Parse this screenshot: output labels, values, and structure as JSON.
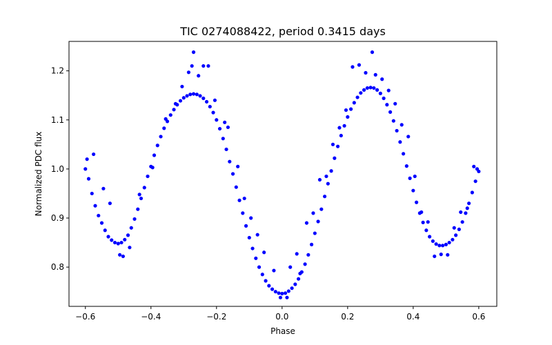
{
  "chart_data": {
    "type": "scatter",
    "title": "TIC 0274088422, period 0.3415 days",
    "xlabel": "Phase",
    "ylabel": "Normalized PDC flux",
    "xlim": [
      -0.65,
      0.655
    ],
    "ylim": [
      0.72,
      1.26
    ],
    "xticks": [
      -0.6,
      -0.4,
      -0.2,
      0.0,
      0.2,
      0.4,
      0.6
    ],
    "xtick_labels": [
      "−0.6",
      "−0.4",
      "−0.2",
      "0.0",
      "0.2",
      "0.4",
      "0.6"
    ],
    "yticks": [
      0.8,
      0.9,
      1.0,
      1.1,
      1.2
    ],
    "ytick_labels": [
      "0.8",
      "0.9",
      "1.0",
      "1.1",
      "1.2"
    ],
    "grid": false,
    "series": [
      {
        "color": "#0000ff",
        "marker": "circle",
        "points": [
          [
            -0.6,
            1.0
          ],
          [
            -0.59,
            0.98
          ],
          [
            -0.58,
            0.95
          ],
          [
            -0.57,
            0.925
          ],
          [
            -0.56,
            0.905
          ],
          [
            -0.55,
            0.89
          ],
          [
            -0.54,
            0.875
          ],
          [
            -0.53,
            0.862
          ],
          [
            -0.52,
            0.855
          ],
          [
            -0.51,
            0.85
          ],
          [
            -0.5,
            0.848
          ],
          [
            -0.49,
            0.85
          ],
          [
            -0.48,
            0.856
          ],
          [
            -0.47,
            0.865
          ],
          [
            -0.46,
            0.88
          ],
          [
            -0.45,
            0.898
          ],
          [
            -0.44,
            0.918
          ],
          [
            -0.43,
            0.94
          ],
          [
            -0.42,
            0.962
          ],
          [
            -0.41,
            0.985
          ],
          [
            -0.4,
            1.005
          ],
          [
            -0.39,
            1.028
          ],
          [
            -0.38,
            1.048
          ],
          [
            -0.37,
            1.066
          ],
          [
            -0.36,
            1.083
          ],
          [
            -0.35,
            1.097
          ],
          [
            -0.34,
            1.11
          ],
          [
            -0.33,
            1.121
          ],
          [
            -0.32,
            1.131
          ],
          [
            -0.31,
            1.139
          ],
          [
            -0.3,
            1.145
          ],
          [
            -0.29,
            1.149
          ],
          [
            -0.28,
            1.152
          ],
          [
            -0.27,
            1.153
          ],
          [
            -0.26,
            1.152
          ],
          [
            -0.25,
            1.149
          ],
          [
            -0.24,
            1.144
          ],
          [
            -0.23,
            1.137
          ],
          [
            -0.22,
            1.127
          ],
          [
            -0.21,
            1.115
          ],
          [
            -0.2,
            1.1
          ],
          [
            -0.19,
            1.082
          ],
          [
            -0.18,
            1.062
          ],
          [
            -0.17,
            1.04
          ],
          [
            -0.16,
            1.015
          ],
          [
            -0.15,
            0.99
          ],
          [
            -0.14,
            0.963
          ],
          [
            -0.13,
            0.936
          ],
          [
            -0.12,
            0.91
          ],
          [
            -0.11,
            0.884
          ],
          [
            -0.1,
            0.86
          ],
          [
            -0.09,
            0.838
          ],
          [
            -0.08,
            0.818
          ],
          [
            -0.07,
            0.8
          ],
          [
            -0.06,
            0.785
          ],
          [
            -0.05,
            0.772
          ],
          [
            -0.04,
            0.762
          ],
          [
            -0.03,
            0.755
          ],
          [
            -0.02,
            0.75
          ],
          [
            -0.01,
            0.747
          ],
          [
            0.0,
            0.746
          ],
          [
            0.01,
            0.747
          ],
          [
            0.02,
            0.751
          ],
          [
            0.03,
            0.757
          ],
          [
            0.04,
            0.765
          ],
          [
            0.05,
            0.776
          ],
          [
            0.06,
            0.79
          ],
          [
            0.07,
            0.806
          ],
          [
            0.08,
            0.825
          ],
          [
            0.09,
            0.846
          ],
          [
            0.1,
            0.869
          ],
          [
            0.11,
            0.893
          ],
          [
            0.12,
            0.918
          ],
          [
            0.13,
            0.944
          ],
          [
            0.14,
            0.97
          ],
          [
            0.15,
            0.996
          ],
          [
            0.16,
            1.022
          ],
          [
            0.17,
            1.046
          ],
          [
            0.18,
            1.068
          ],
          [
            0.19,
            1.088
          ],
          [
            0.2,
            1.106
          ],
          [
            0.21,
            1.122
          ],
          [
            0.22,
            1.135
          ],
          [
            0.23,
            1.146
          ],
          [
            0.24,
            1.155
          ],
          [
            0.25,
            1.161
          ],
          [
            0.26,
            1.165
          ],
          [
            0.27,
            1.166
          ],
          [
            0.28,
            1.165
          ],
          [
            0.29,
            1.161
          ],
          [
            0.3,
            1.154
          ],
          [
            0.31,
            1.144
          ],
          [
            0.32,
            1.131
          ],
          [
            0.33,
            1.116
          ],
          [
            0.34,
            1.098
          ],
          [
            0.35,
            1.078
          ],
          [
            0.36,
            1.055
          ],
          [
            0.37,
            1.031
          ],
          [
            0.38,
            1.006
          ],
          [
            0.39,
            0.981
          ],
          [
            0.4,
            0.956
          ],
          [
            0.41,
            0.932
          ],
          [
            0.42,
            0.91
          ],
          [
            0.43,
            0.891
          ],
          [
            0.44,
            0.875
          ],
          [
            0.45,
            0.862
          ],
          [
            0.46,
            0.853
          ],
          [
            0.47,
            0.847
          ],
          [
            0.48,
            0.844
          ],
          [
            0.49,
            0.844
          ],
          [
            0.5,
            0.846
          ],
          [
            0.51,
            0.85
          ],
          [
            0.52,
            0.856
          ],
          [
            0.53,
            0.865
          ],
          [
            0.54,
            0.877
          ],
          [
            0.55,
            0.892
          ],
          [
            0.56,
            0.91
          ],
          [
            0.57,
            0.93
          ],
          [
            0.58,
            0.952
          ],
          [
            0.59,
            0.975
          ],
          [
            0.6,
            0.995
          ],
          [
            -0.595,
            1.02
          ],
          [
            -0.575,
            1.03
          ],
          [
            -0.545,
            0.96
          ],
          [
            -0.525,
            0.93
          ],
          [
            -0.495,
            0.825
          ],
          [
            -0.485,
            0.822
          ],
          [
            -0.465,
            0.84
          ],
          [
            -0.435,
            0.948
          ],
          [
            -0.395,
            1.003
          ],
          [
            -0.355,
            1.102
          ],
          [
            -0.325,
            1.133
          ],
          [
            -0.305,
            1.168
          ],
          [
            -0.285,
            1.197
          ],
          [
            -0.275,
            1.21
          ],
          [
            -0.27,
            1.238
          ],
          [
            -0.255,
            1.19
          ],
          [
            -0.24,
            1.21
          ],
          [
            -0.225,
            1.21
          ],
          [
            -0.205,
            1.14
          ],
          [
            -0.175,
            1.095
          ],
          [
            -0.165,
            1.085
          ],
          [
            -0.135,
            1.005
          ],
          [
            -0.115,
            0.94
          ],
          [
            -0.095,
            0.9
          ],
          [
            -0.075,
            0.866
          ],
          [
            -0.055,
            0.83
          ],
          [
            -0.025,
            0.793
          ],
          [
            -0.005,
            0.738
          ],
          [
            0.015,
            0.738
          ],
          [
            0.025,
            0.8
          ],
          [
            0.045,
            0.827
          ],
          [
            0.055,
            0.787
          ],
          [
            0.075,
            0.89
          ],
          [
            0.095,
            0.91
          ],
          [
            0.115,
            0.978
          ],
          [
            0.135,
            0.985
          ],
          [
            0.155,
            1.05
          ],
          [
            0.175,
            1.084
          ],
          [
            0.195,
            1.12
          ],
          [
            0.215,
            1.208
          ],
          [
            0.235,
            1.212
          ],
          [
            0.255,
            1.196
          ],
          [
            0.275,
            1.238
          ],
          [
            0.285,
            1.192
          ],
          [
            0.305,
            1.183
          ],
          [
            0.325,
            1.16
          ],
          [
            0.345,
            1.133
          ],
          [
            0.365,
            1.09
          ],
          [
            0.385,
            1.066
          ],
          [
            0.405,
            0.985
          ],
          [
            0.425,
            0.912
          ],
          [
            0.445,
            0.892
          ],
          [
            0.465,
            0.822
          ],
          [
            0.485,
            0.826
          ],
          [
            0.505,
            0.825
          ],
          [
            0.525,
            0.88
          ],
          [
            0.545,
            0.912
          ],
          [
            0.565,
            0.92
          ],
          [
            0.585,
            1.005
          ],
          [
            0.595,
            1.0
          ]
        ]
      }
    ]
  }
}
